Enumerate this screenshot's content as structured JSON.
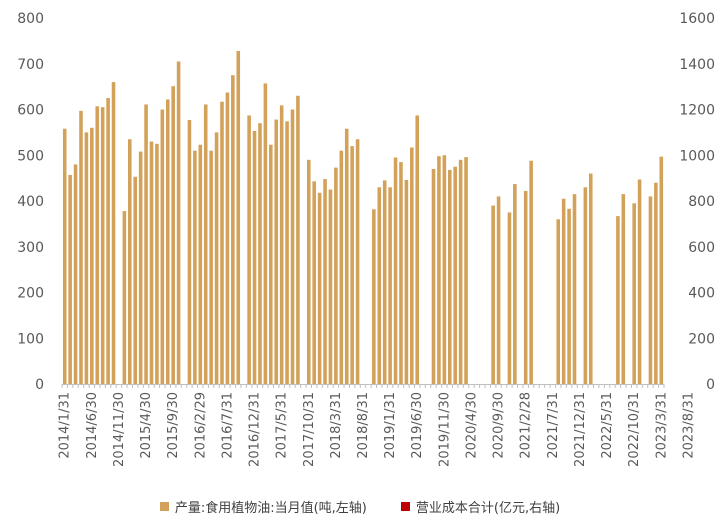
{
  "chart_data": {
    "type": "bar",
    "title": "",
    "left_axis": {
      "min": 0,
      "max": 800,
      "ticks": [
        0,
        100,
        200,
        300,
        400,
        500,
        600,
        700,
        800
      ]
    },
    "right_axis": {
      "min": 0,
      "max": 1600,
      "ticks": [
        0,
        200,
        400,
        600,
        800,
        1000,
        1200,
        1400,
        1600
      ]
    },
    "x_tick_labels": [
      "2014/1/31",
      "2014/6/30",
      "2014/11/30",
      "2015/4/30",
      "2015/9/30",
      "2016/2/29",
      "2016/7/31",
      "2016/12/31",
      "2017/5/31",
      "2017/10/31",
      "2018/3/31",
      "2018/8/31",
      "2019/1/31",
      "2019/6/30",
      "2019/11/30",
      "2020/4/30",
      "2020/9/30",
      "2021/2/28",
      "2021/7/31",
      "2021/12/31",
      "2022/5/31",
      "2022/10/31",
      "2023/3/31",
      "2023/8/31"
    ],
    "start_month": "2014-01",
    "series": [
      {
        "name": "产量:食用植物油:当月值(吨,左轴)",
        "axis": "left",
        "color": "#D3A25A",
        "values": [
          558,
          457,
          480,
          597,
          550,
          560,
          607,
          605,
          625,
          660,
          null,
          378,
          535,
          453,
          508,
          611,
          530,
          525,
          600,
          622,
          651,
          705,
          null,
          577,
          510,
          523,
          611,
          510,
          550,
          617,
          637,
          675,
          728,
          null,
          587,
          553,
          570,
          657,
          523,
          578,
          609,
          574,
          600,
          630,
          null,
          490,
          443,
          418,
          448,
          425,
          473,
          510,
          558,
          520,
          535,
          null,
          null,
          382,
          430,
          445,
          430,
          495,
          485,
          446,
          517,
          587,
          null,
          null,
          470,
          498,
          500,
          468,
          475,
          490,
          496,
          null,
          null,
          null,
          null,
          390,
          410,
          null,
          375,
          437,
          null,
          422,
          488,
          null,
          null,
          null,
          null,
          360,
          405,
          383,
          415,
          null,
          430,
          460,
          null,
          null,
          null,
          null,
          367,
          415,
          null,
          395,
          447,
          null,
          410,
          440,
          497
        ]
      },
      {
        "name": "营业成本合计(亿元,右轴)",
        "axis": "right",
        "color": "#C00000",
        "values": [
          null,
          null,
          null,
          null,
          null,
          null,
          null,
          null,
          null,
          null,
          null,
          null,
          null,
          null,
          null,
          null,
          null,
          null,
          null,
          null,
          null,
          null,
          null,
          null,
          null,
          null,
          null,
          null,
          null,
          null,
          null,
          null,
          null,
          null,
          null,
          null,
          null,
          null,
          null,
          null,
          null,
          null,
          null,
          null,
          null,
          null,
          null,
          null,
          null,
          null,
          null,
          null,
          null,
          null,
          null,
          null,
          null,
          null,
          null,
          null,
          null,
          null,
          null,
          null,
          null,
          null,
          null,
          null,
          null,
          null,
          null,
          null,
          null,
          null,
          null,
          null,
          null,
          null,
          null,
          null,
          null,
          null,
          null,
          null,
          null,
          null,
          null,
          null,
          null,
          null,
          null,
          null,
          null,
          null,
          null,
          null,
          null,
          null,
          null,
          null,
          null,
          null,
          null,
          null,
          null,
          null,
          null,
          null,
          null,
          null,
          null,
          null,
          null,
          null,
          null,
          null,
          null,
          null
        ]
      }
    ],
    "legend_position": "bottom",
    "grid": false
  },
  "legend": {
    "items": [
      {
        "label": "产量:食用植物油:当月值(吨,左轴)",
        "color": "#D3A25A"
      },
      {
        "label": "营业成本合计(亿元,右轴)",
        "color": "#C00000"
      }
    ]
  }
}
